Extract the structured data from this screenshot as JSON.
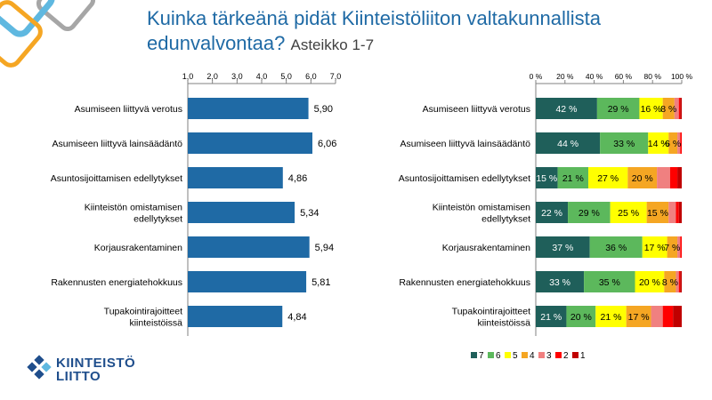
{
  "page": {
    "title": "Kuinka tärkeänä pidät Kiinteistöliiton valtakunnallista edunvalvontaa?",
    "subtitle": "Asteikko 1-7",
    "logo": {
      "line1": "KIINTEISTÖ",
      "line2": "LIITTO"
    }
  },
  "colors": {
    "title": "#1f6aa5",
    "bar": "#1f6aa5",
    "corner_light_blue": "#5fb8e0",
    "corner_orange": "#f5a623",
    "corner_grey": "#a6a6a6",
    "logo": "#1f4e8c",
    "scale": {
      "7": "#1f5f5a",
      "6": "#5cb85c",
      "5": "#ffff00",
      "4": "#f5a623",
      "3": "#f08080",
      "2": "#ff0000",
      "1": "#c00000"
    }
  },
  "chart_data": [
    {
      "type": "bar",
      "orientation": "horizontal",
      "categories": [
        "Asumiseen liittyvä verotus",
        "Asumiseen liittyvä lainsäädäntö",
        "Asuntosijoittamisen edellytykset",
        "Kiinteistön omistamisen edellytykset",
        "Korjausrakentaminen",
        "Rakennusten energiatehokkuus",
        "Tupakointirajoitteet kiinteistöissä"
      ],
      "category_lines": [
        [
          "Asumiseen liittyvä verotus"
        ],
        [
          "Asumiseen liittyvä lainsäädäntö"
        ],
        [
          "Asuntosijoittamisen edellytykset"
        ],
        [
          "Kiinteistön omistamisen",
          "edellytykset"
        ],
        [
          "Korjausrakentaminen"
        ],
        [
          "Rakennusten energiatehokkuus"
        ],
        [
          "Tupakointirajoitteet",
          "kiinteistöissä"
        ]
      ],
      "values": [
        5.9,
        6.06,
        4.86,
        5.34,
        5.94,
        5.81,
        4.84
      ],
      "value_labels": [
        "5,90",
        "6,06",
        "4,86",
        "5,34",
        "5,94",
        "5,81",
        "4,84"
      ],
      "xlim": [
        1.0,
        7.0
      ],
      "xticks": [
        1.0,
        2.0,
        3.0,
        4.0,
        5.0,
        6.0,
        7.0
      ],
      "xtick_labels": [
        "1,0",
        "2,0",
        "3,0",
        "4,0",
        "5,0",
        "6,0",
        "7,0"
      ],
      "axis_position": "top",
      "grid": false,
      "legend": "none"
    },
    {
      "type": "bar",
      "orientation": "horizontal",
      "stacked": "percent",
      "categories": [
        "Asumiseen liittyvä verotus",
        "Asumiseen liittyvä lainsäädäntö",
        "Asuntosijoittamisen edellytykset",
        "Kiinteistön omistamisen edellytykset",
        "Korjausrakentaminen",
        "Rakennusten energiatehokkuus",
        "Tupakointirajoitteet kiinteistöissä"
      ],
      "category_lines": [
        [
          "Asumiseen liittyvä verotus"
        ],
        [
          "Asumiseen liittyvä lainsäädäntö"
        ],
        [
          "Asuntosijoittamisen edellytykset"
        ],
        [
          "Kiinteistön omistamisen",
          "edellytykset"
        ],
        [
          "Korjausrakentaminen"
        ],
        [
          "Rakennusten energiatehokkuus"
        ],
        [
          "Tupakointirajoitteet",
          "kiinteistöissä"
        ]
      ],
      "series": [
        {
          "name": "7",
          "values": [
            42,
            44,
            15,
            22,
            37,
            33,
            21
          ],
          "labels": [
            "42 %",
            "44 %",
            "15 %",
            "22 %",
            "37 %",
            "33 %",
            "21 %"
          ]
        },
        {
          "name": "6",
          "values": [
            29,
            33,
            21,
            29,
            36,
            35,
            20
          ],
          "labels": [
            "29 %",
            "33 %",
            "21 %",
            "29 %",
            "36 %",
            "35 %",
            "20 %"
          ]
        },
        {
          "name": "5",
          "values": [
            16,
            14,
            27,
            25,
            17,
            20,
            21
          ],
          "labels": [
            "16 %",
            "14 %",
            "27 %",
            "25 %",
            "17 %",
            "20 %",
            "21 %"
          ]
        },
        {
          "name": "4",
          "values": [
            8,
            6,
            20,
            15,
            7,
            8,
            17
          ],
          "labels": [
            "8 %",
            "6 %",
            "20 %",
            "15 %",
            "7 %",
            "8 %",
            "17 %"
          ]
        },
        {
          "name": "3",
          "values": [
            3,
            2,
            9,
            5,
            2,
            2,
            8
          ],
          "labels": [
            "",
            "",
            "",
            "",
            "",
            "",
            ""
          ]
        },
        {
          "name": "2",
          "values": [
            1,
            1,
            5,
            2,
            1,
            1,
            7
          ],
          "labels": [
            "",
            "",
            "",
            "",
            "",
            "",
            ""
          ]
        },
        {
          "name": "1",
          "values": [
            1,
            0,
            3,
            2,
            0,
            1,
            6
          ],
          "labels": [
            "",
            "",
            "",
            "",
            "",
            "",
            ""
          ]
        }
      ],
      "xlim": [
        0,
        100
      ],
      "xticks": [
        0,
        20,
        40,
        60,
        80,
        100
      ],
      "xtick_labels": [
        "0 %",
        "20 %",
        "40 %",
        "60 %",
        "80 %",
        "100 %"
      ],
      "axis_position": "top",
      "grid": false,
      "legend": "bottom"
    }
  ]
}
